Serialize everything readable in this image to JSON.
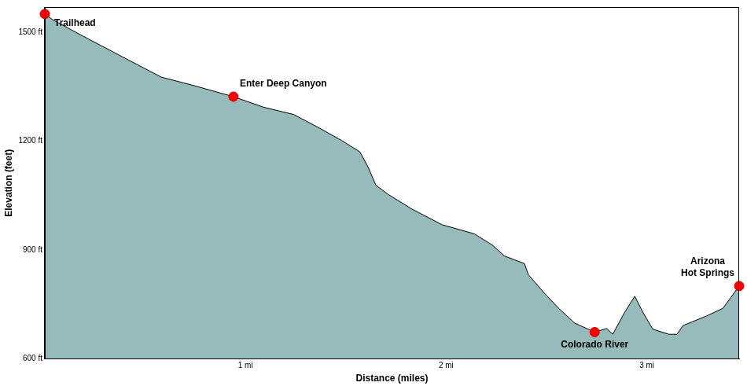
{
  "chart_data": {
    "type": "area",
    "x_label": "Distance (miles)",
    "y_label": "Elevation (feet)",
    "x": [
      0,
      0.04,
      0.19,
      0.39,
      0.58,
      0.74,
      0.94,
      1.09,
      1.24,
      1.36,
      1.48,
      1.57,
      1.61,
      1.65,
      1.71,
      1.83,
      1.98,
      2.14,
      2.23,
      2.29,
      2.39,
      2.41,
      2.49,
      2.56,
      2.64,
      2.74,
      2.8,
      2.83,
      2.89,
      2.94,
      2.98,
      3.03,
      3.11,
      3.15,
      3.18,
      3.3,
      3.38,
      3.46
    ],
    "values": [
      1551,
      1535,
      1490,
      1432,
      1377,
      1354,
      1323,
      1294,
      1274,
      1239,
      1202,
      1171,
      1130,
      1079,
      1054,
      1013,
      970,
      945,
      914,
      884,
      863,
      832,
      781,
      740,
      699,
      674,
      684,
      668,
      729,
      773,
      729,
      682,
      668,
      668,
      692,
      719,
      740,
      801
    ],
    "color": "#97baba",
    "xlim": [
      0,
      3.46
    ],
    "ylim": [
      600,
      1570
    ],
    "xticks": [
      {
        "value": 1,
        "label": "1 mi"
      },
      {
        "value": 2,
        "label": "2 mi"
      },
      {
        "value": 3,
        "label": "3 mi"
      }
    ],
    "yticks": [
      {
        "value": 600,
        "label": "600 ft"
      },
      {
        "value": 900,
        "label": "900 ft"
      },
      {
        "value": 1200,
        "label": "1200 ft"
      },
      {
        "value": 1500,
        "label": "1500 ft"
      }
    ],
    "grid": false,
    "annotations": [
      {
        "text": "Trailhead",
        "x": 0,
        "y": 1551
      },
      {
        "text": "Enter Deep Canyon",
        "x": 0.94,
        "y": 1323
      },
      {
        "text": "Colorado River",
        "x": 2.74,
        "y": 674
      },
      {
        "text": [
          "Arizona",
          "Hot Springs"
        ],
        "x": 3.46,
        "y": 801
      }
    ]
  }
}
